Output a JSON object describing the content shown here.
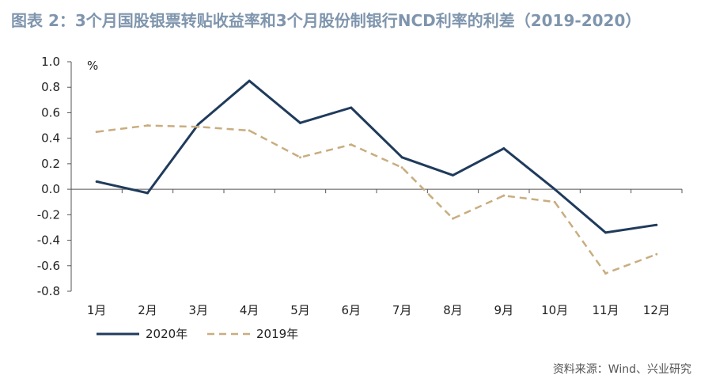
{
  "title": "图表 2：3个月国股银票转贴收益率和3个月股份制银行NCD利率的利差（2019-2020）",
  "source": "资料来源：Wind、兴业研究",
  "chart_data": {
    "type": "line",
    "title": "图表 2：3个月国股银票转贴收益率和3个月股份制银行NCD利率的利差（2019-2020）",
    "ylabel": "%",
    "xlabel": "",
    "categories": [
      "1月",
      "2月",
      "3月",
      "4月",
      "5月",
      "6月",
      "7月",
      "8月",
      "9月",
      "10月",
      "11月",
      "12月"
    ],
    "ylim": [
      -0.8,
      1.0
    ],
    "yticks": [
      "1.0",
      "0.8",
      "0.6",
      "0.4",
      "0.2",
      "0.0",
      "-0.2",
      "-0.4",
      "-0.6",
      "-0.8"
    ],
    "grid": false,
    "legend_position": "bottom-left",
    "series": [
      {
        "name": "2020年",
        "color": "#1f3b5c",
        "style": "solid",
        "values": [
          0.06,
          -0.03,
          0.51,
          0.85,
          0.52,
          0.64,
          0.25,
          0.11,
          0.32,
          0.0,
          -0.34,
          -0.28
        ]
      },
      {
        "name": "2019年",
        "color": "#c9ad7f",
        "style": "dashed",
        "values": [
          0.45,
          0.5,
          0.49,
          0.46,
          0.25,
          0.35,
          0.17,
          -0.23,
          -0.05,
          -0.1,
          -0.66,
          -0.51
        ]
      }
    ]
  }
}
